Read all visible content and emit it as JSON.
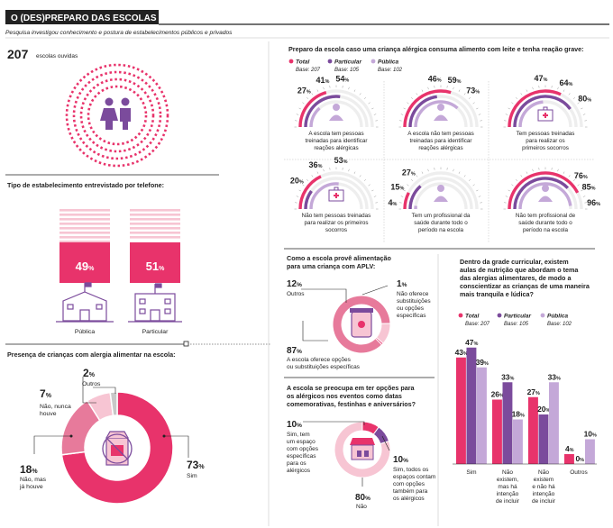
{
  "header": {
    "title": "O (DES)PREPARO DAS ESCOLAS",
    "subtitle": "Pesquisa investigou conhecimento e postura de estabelecimentos públicos e privados"
  },
  "colors": {
    "total": "#e8336b",
    "particular": "#7b4b9c",
    "publica": "#c4a8d8",
    "pink_light": "#f7c5d3",
    "pink_mid": "#e77a9b",
    "gray": "#c8c8c8"
  },
  "sample": {
    "count": "207",
    "label": "escolas ouvidas"
  },
  "school_type": {
    "title": "Tipo de estabelecimento entrevistado por telefone:",
    "items": [
      {
        "label": "Pública",
        "value": "49",
        "unit": "%"
      },
      {
        "label": "Particular",
        "value": "51",
        "unit": "%"
      }
    ]
  },
  "presence": {
    "title": "Presença de crianças com alergia alimentar na escola:",
    "labels": [
      {
        "pct": "73",
        "unit": "%",
        "text": "Sim"
      },
      {
        "pct": "18",
        "unit": "%",
        "text": "Não, mas já houve"
      },
      {
        "pct": "7",
        "unit": "%",
        "text": "Não, nunca houve"
      },
      {
        "pct": "2",
        "unit": "%",
        "text": "Outros"
      }
    ],
    "name_lines": [
      [
        "Sim"
      ],
      [
        "Não, mas",
        "já houve"
      ],
      [
        "Não, nunca",
        "houve"
      ],
      [
        "Outros"
      ]
    ]
  },
  "preparedness": {
    "title": "Preparo da escola caso uma criança alérgica consuma alimento com leite e tenha reação grave:",
    "legend": [
      {
        "name": "Total",
        "base": "Base: 207"
      },
      {
        "name": "Particular",
        "base": "Base: 105"
      },
      {
        "name": "Pública",
        "base": "Base: 102"
      }
    ],
    "gauges": [
      {
        "total": "41",
        "particular": "54",
        "publica": "27",
        "lines": [
          "A escola tem pessoas",
          "treinadas para identificar",
          "reações alérgicas"
        ]
      },
      {
        "total": "59",
        "particular": "46",
        "publica": "73",
        "lines": [
          "A escola não tem pessoas",
          "treinadas para identificar",
          "reações alérgicas"
        ]
      },
      {
        "total": "64",
        "particular": "80",
        "publica": "47",
        "lines": [
          "Tem pessoas treinadas",
          "para realizar os",
          "primeiros socorros"
        ]
      },
      {
        "total": "36",
        "particular": "20",
        "publica": "53",
        "lines": [
          "Não tem pessoas treinadas",
          "para realizar os primeiros",
          "socorros"
        ]
      },
      {
        "total": "15",
        "particular": "27",
        "publica": "4",
        "lines": [
          "Tem um profissional da",
          "saúde durante todo o",
          "período na escola"
        ]
      },
      {
        "total": "85",
        "particular": "76",
        "publica": "96",
        "lines": [
          "Não tem profissional de",
          "saúde durante todo o",
          "período na escola"
        ]
      }
    ]
  },
  "food_provision": {
    "title_lines": [
      "Como a escola provê alimentação",
      "para uma criança com APLV:"
    ],
    "labels": [
      {
        "pct": "87",
        "unit": "%",
        "lines": [
          "A escola oferece opções",
          "ou substituições específicas"
        ]
      },
      {
        "pct": "12",
        "unit": "%",
        "lines": [
          "Outros"
        ]
      },
      {
        "pct": "1",
        "unit": "%",
        "lines": [
          "Não oferece",
          "substituições",
          "ou opções",
          "específicas"
        ]
      }
    ]
  },
  "events": {
    "title_lines": [
      "A escola se preocupa em ter opções para",
      "os alérgicos nos eventos como datas",
      "comemorativas, festinhas e aniversários?"
    ],
    "labels": [
      {
        "pct": "80",
        "unit": "%",
        "lines": [
          "Não"
        ]
      },
      {
        "pct": "10",
        "unit": "%",
        "lines": [
          "Sim, tem",
          "um espaço",
          "com opções",
          "específicas",
          "para os",
          "alérgicos"
        ]
      },
      {
        "pct": "10",
        "unit": "%",
        "lines": [
          "Sim, todos os",
          "espaços contam",
          "com opções",
          "também para",
          "os alérgicos"
        ]
      }
    ]
  },
  "nutrition": {
    "title_lines": [
      "Dentro da grade curricular, existem",
      "aulas de nutrição que abordam o tema",
      "das alergias alimentares, de modo a",
      "conscientizar as crianças de uma maneira",
      "mais tranquila e lúdica?"
    ],
    "legend": [
      {
        "name": "Total",
        "base": "Base: 207"
      },
      {
        "name": "Particular",
        "base": "Base: 105"
      },
      {
        "name": "Pública",
        "base": "Base: 102"
      }
    ],
    "cat_lines": [
      [
        "Sim"
      ],
      [
        "Não",
        "existem,",
        "mas há",
        "intenção",
        "de incluir"
      ],
      [
        "Não",
        "existem",
        "e não há",
        "intenção",
        "de incluir"
      ],
      [
        "Outros"
      ]
    ],
    "val_labels": [
      [
        "43",
        "47",
        "39"
      ],
      [
        "26",
        "33",
        "18"
      ],
      [
        "27",
        "20",
        "33"
      ],
      [
        "4",
        "0",
        "10"
      ]
    ],
    "unit": "%"
  },
  "chart_data": [
    {
      "type": "pie",
      "title": "Tipo de estabelecimento entrevistado por telefone:",
      "categories": [
        "Pública",
        "Particular"
      ],
      "values": [
        49,
        51
      ]
    },
    {
      "type": "pie",
      "title": "Presença de crianças com alergia alimentar na escola:",
      "categories": [
        "Sim",
        "Não, mas já houve",
        "Não, nunca houve",
        "Outros"
      ],
      "values": [
        73,
        18,
        7,
        2
      ]
    },
    {
      "type": "bar",
      "title": "Preparo da escola caso uma criança alérgica consuma alimento com leite e tenha reação grave:",
      "categories": [
        "A escola tem pessoas treinadas para identificar reações alérgicas",
        "A escola não tem pessoas treinadas para identificar reações alérgicas",
        "Tem pessoas treinadas para realizar os primeiros socorros",
        "Não tem pessoas treinadas para realizar os primeiros socorros",
        "Tem um profissional da saúde durante todo o período na escola",
        "Não tem profissional de saúde durante todo o período na escola"
      ],
      "series": [
        {
          "name": "Total",
          "values": [
            41,
            59,
            64,
            36,
            15,
            85
          ]
        },
        {
          "name": "Particular",
          "values": [
            54,
            46,
            80,
            20,
            27,
            76
          ]
        },
        {
          "name": "Pública",
          "values": [
            27,
            73,
            47,
            53,
            4,
            96
          ]
        }
      ]
    },
    {
      "type": "pie",
      "title": "Como a escola provê alimentação para uma criança com APLV:",
      "categories": [
        "A escola oferece opções ou substituições específicas",
        "Outros",
        "Não oferece substituições ou opções específicas"
      ],
      "values": [
        87,
        12,
        1
      ]
    },
    {
      "type": "pie",
      "title": "A escola se preocupa em ter opções para os alérgicos nos eventos como datas comemorativas, festinhas e aniversários?",
      "categories": [
        "Não",
        "Sim, tem um espaço com opções específicas para os alérgicos",
        "Sim, todos os espaços contam com opções também para os alérgicos"
      ],
      "values": [
        80,
        10,
        10
      ]
    },
    {
      "type": "bar",
      "title": "Dentro da grade curricular, existem aulas de nutrição que abordam o tema das alergias alimentares, de modo a conscientizar as crianças de uma maneira mais tranquila e lúdica?",
      "categories": [
        "Sim",
        "Não existem, mas há intenção de incluir",
        "Não existem e não há intenção de incluir",
        "Outros"
      ],
      "series": [
        {
          "name": "Total",
          "values": [
            43,
            26,
            27,
            4
          ]
        },
        {
          "name": "Particular",
          "values": [
            47,
            33,
            20,
            0
          ]
        },
        {
          "name": "Pública",
          "values": [
            39,
            18,
            33,
            10
          ]
        }
      ],
      "ylim": [
        0,
        50
      ]
    }
  ]
}
